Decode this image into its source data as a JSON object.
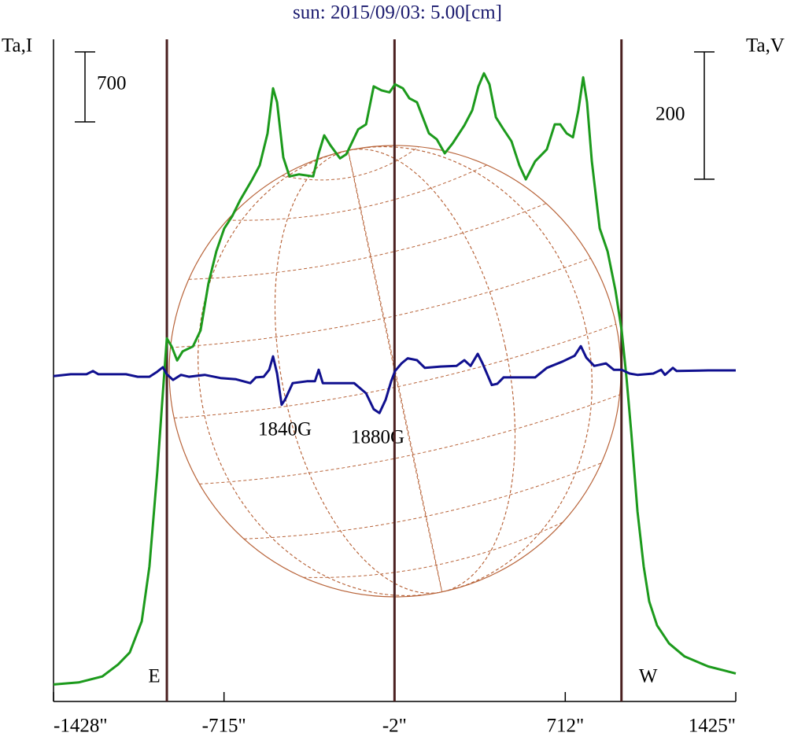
{
  "chart_data": {
    "type": "line",
    "title": "sun: 2015/09/03: 5.00[cm]",
    "y_label": "Ta,I",
    "y2_label": "Ta,V",
    "xlim": [
      -1428,
      1425
    ],
    "xticks": [
      {
        "value": -1428,
        "label": "-1428\""
      },
      {
        "value": -715,
        "label": "-715\""
      },
      {
        "value": -2,
        "label": "-2\""
      },
      {
        "value": 712,
        "label": "712\""
      },
      {
        "value": 1425,
        "label": "1425\""
      }
    ],
    "ylim": [
      0,
      6620
    ],
    "y2lim": [
      -520,
      520
    ],
    "i_scale": 700,
    "v_scale": 200,
    "vlines": {
      "x": [
        -954,
        -2,
        947
      ],
      "labels": [
        "E",
        null,
        "W"
      ],
      "color": "#4a2020"
    },
    "annotations": [
      "1840G",
      "1880G"
    ],
    "series": [
      {
        "color": "#1c9a1c",
        "x": [
          -1428,
          -1323,
          -1224,
          -1158,
          -1109,
          -1059,
          -1027,
          -994,
          -971,
          -954,
          -934,
          -911,
          -888,
          -845,
          -813,
          -780,
          -747,
          -714,
          -681,
          -648,
          -599,
          -566,
          -533,
          -510,
          -493,
          -467,
          -441,
          -401,
          -342,
          -319,
          -296,
          -270,
          -230,
          -204,
          -154,
          -121,
          -89,
          -56,
          -23,
          0,
          33,
          60,
          92,
          142,
          175,
          208,
          241,
          290,
          323,
          349,
          372,
          395,
          422,
          454,
          487,
          520,
          547,
          586,
          635,
          668,
          691,
          718,
          744,
          767,
          787,
          803,
          823,
          856,
          889,
          922,
          948,
          968,
          988,
          1014,
          1040,
          1063,
          1096,
          1146,
          1211,
          1310,
          1376,
          1425
        ],
        "values": [
          170,
          190,
          250,
          370,
          490,
          800,
          1350,
          2300,
          3080,
          3630,
          3550,
          3410,
          3500,
          3550,
          3710,
          4180,
          4500,
          4730,
          4850,
          5010,
          5210,
          5360,
          5680,
          6130,
          5990,
          5440,
          5250,
          5270,
          5250,
          5480,
          5660,
          5560,
          5430,
          5470,
          5720,
          5770,
          6150,
          6110,
          6090,
          6170,
          6130,
          6030,
          5990,
          5680,
          5620,
          5480,
          5580,
          5760,
          5910,
          6150,
          6280,
          6170,
          5840,
          5720,
          5600,
          5360,
          5220,
          5400,
          5520,
          5770,
          5770,
          5680,
          5640,
          5910,
          6240,
          5990,
          5400,
          4730,
          4500,
          4110,
          3710,
          3240,
          2690,
          1900,
          1350,
          1000,
          760,
          580,
          450,
          350,
          310,
          280
        ]
      },
      {
        "color": "#10108f",
        "axis": "y2",
        "x": [
          -1428,
          -1356,
          -1290,
          -1263,
          -1240,
          -1125,
          -1076,
          -1027,
          -994,
          -971,
          -954,
          -928,
          -895,
          -862,
          -796,
          -730,
          -665,
          -605,
          -582,
          -549,
          -526,
          -510,
          -493,
          -474,
          -460,
          -428,
          -368,
          -335,
          -319,
          -302,
          -270,
          -171,
          -121,
          -89,
          -65,
          -39,
          -16,
          0,
          27,
          53,
          92,
          125,
          191,
          257,
          290,
          316,
          346,
          366,
          405,
          428,
          454,
          586,
          635,
          701,
          751,
          777,
          800,
          833,
          882,
          915,
          948,
          981,
          1014,
          1080,
          1113,
          1129,
          1162,
          1178,
          1310,
          1425
        ],
        "values": [
          -9,
          -6,
          -6,
          -1,
          -6,
          -6,
          -10,
          -10,
          -2,
          5,
          -6,
          -15,
          -7,
          -10,
          -7,
          -12,
          -14,
          -20,
          -11,
          -10,
          1,
          22,
          -5,
          -54,
          -46,
          -20,
          -17,
          -17,
          1,
          -20,
          -20,
          -20,
          -36,
          -61,
          -67,
          -46,
          -17,
          -1,
          11,
          19,
          16,
          4,
          6,
          7,
          16,
          7,
          26,
          11,
          -23,
          -21,
          -11,
          -11,
          4,
          14,
          23,
          38,
          20,
          7,
          11,
          1,
          1,
          -5,
          -7,
          -5,
          1,
          -7,
          4,
          -1,
          0,
          0
        ]
      }
    ]
  }
}
